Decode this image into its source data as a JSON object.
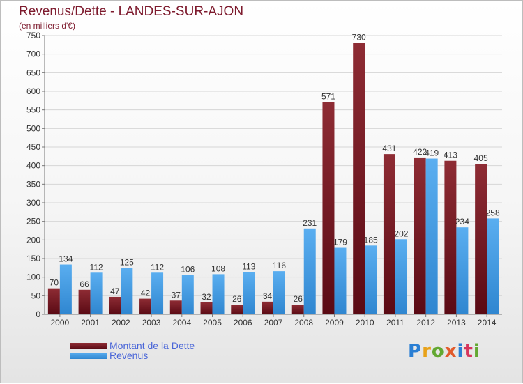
{
  "header": {
    "title": "Revenus/Dette - LANDES-SUR-AJON",
    "subtitle": "(en milliers d'€)"
  },
  "legend": {
    "items": [
      {
        "label": "Montant de la Dette",
        "color": "#6e1420"
      },
      {
        "label": "Revenus",
        "color": "#3d9ae6"
      }
    ]
  },
  "logo": {
    "text": "Proxiti",
    "colors": [
      "#2a7fd4",
      "#e8a21a",
      "#63a832",
      "#e25b2c",
      "#2a7fd4",
      "#d6365c",
      "#63a832"
    ]
  },
  "chart_data": {
    "type": "bar",
    "categories": [
      "2000",
      "2001",
      "2002",
      "2003",
      "2004",
      "2005",
      "2006",
      "2007",
      "2008",
      "2009",
      "2010",
      "2011",
      "2012",
      "2013",
      "2014"
    ],
    "series": [
      {
        "name": "Montant de la Dette",
        "values": [
          70,
          66,
          47,
          42,
          37,
          32,
          26,
          34,
          26,
          571,
          730,
          431,
          422,
          413,
          405
        ],
        "color": "#7d1a2d"
      },
      {
        "name": "Revenus",
        "values": [
          134,
          112,
          125,
          112,
          106,
          108,
          113,
          116,
          231,
          179,
          185,
          202,
          419,
          234,
          258
        ],
        "color": "#3d9ae6"
      }
    ],
    "ylim": [
      0,
      750
    ],
    "yticks": [
      0,
      50,
      100,
      150,
      200,
      250,
      300,
      350,
      400,
      450,
      500,
      550,
      600,
      650,
      700,
      750
    ],
    "grid": true
  }
}
